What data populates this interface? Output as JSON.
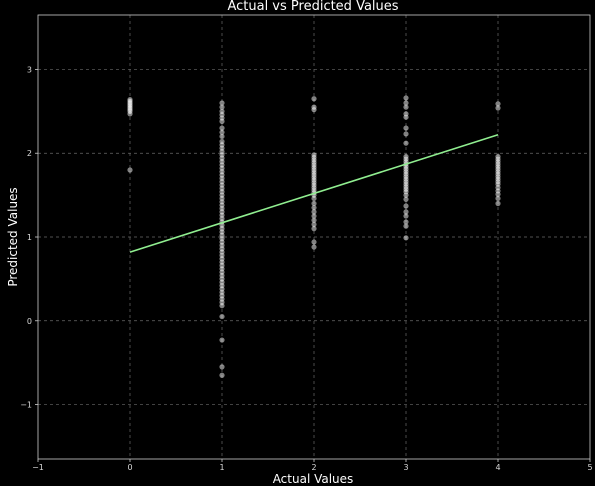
{
  "chart_data": {
    "type": "scatter",
    "title": "Actual vs Predicted Values",
    "xlabel": "Actual Values",
    "ylabel": "Predicted Values",
    "xlim": [
      -1,
      5
    ],
    "ylim": [
      -1.65,
      3.65
    ],
    "xticks": [
      -1,
      0,
      1,
      2,
      3,
      4,
      5
    ],
    "yticks": [
      -1,
      0,
      1,
      2,
      3
    ],
    "grid": true,
    "colors": {
      "background": "#000000",
      "points": "#ffffff",
      "fit_line": "#90ee90",
      "grid": "#6a6a6a",
      "frame": "#cfcfcf"
    },
    "series": [
      {
        "type": "scatter",
        "points": [
          [
            0,
            2.64
          ],
          [
            0,
            2.62
          ],
          [
            0,
            2.6
          ],
          [
            0,
            2.58
          ],
          [
            0,
            2.56
          ],
          [
            0,
            2.54
          ],
          [
            0,
            2.52
          ],
          [
            0,
            2.5
          ],
          [
            0,
            2.47
          ],
          [
            0,
            1.8
          ],
          [
            1,
            2.6
          ],
          [
            1,
            2.55
          ],
          [
            1,
            2.5
          ],
          [
            1,
            2.46
          ],
          [
            1,
            2.42
          ],
          [
            1,
            2.38
          ],
          [
            1,
            2.3
          ],
          [
            1,
            2.25
          ],
          [
            1,
            2.2
          ],
          [
            1,
            2.14
          ],
          [
            1,
            2.1
          ],
          [
            1,
            2.06
          ],
          [
            1,
            2.02
          ],
          [
            1,
            1.98
          ],
          [
            1,
            1.94
          ],
          [
            1,
            1.9
          ],
          [
            1,
            1.86
          ],
          [
            1,
            1.82
          ],
          [
            1,
            1.78
          ],
          [
            1,
            1.74
          ],
          [
            1,
            1.7
          ],
          [
            1,
            1.66
          ],
          [
            1,
            1.62
          ],
          [
            1,
            1.58
          ],
          [
            1,
            1.54
          ],
          [
            1,
            1.5
          ],
          [
            1,
            1.46
          ],
          [
            1,
            1.42
          ],
          [
            1,
            1.38
          ],
          [
            1,
            1.34
          ],
          [
            1,
            1.3
          ],
          [
            1,
            1.26
          ],
          [
            1,
            1.22
          ],
          [
            1,
            1.18
          ],
          [
            1,
            1.14
          ],
          [
            1,
            1.1
          ],
          [
            1,
            1.06
          ],
          [
            1,
            1.02
          ],
          [
            1,
            0.98
          ],
          [
            1,
            0.94
          ],
          [
            1,
            0.9
          ],
          [
            1,
            0.86
          ],
          [
            1,
            0.82
          ],
          [
            1,
            0.78
          ],
          [
            1,
            0.74
          ],
          [
            1,
            0.7
          ],
          [
            1,
            0.66
          ],
          [
            1,
            0.62
          ],
          [
            1,
            0.58
          ],
          [
            1,
            0.54
          ],
          [
            1,
            0.5
          ],
          [
            1,
            0.46
          ],
          [
            1,
            0.42
          ],
          [
            1,
            0.38
          ],
          [
            1,
            0.34
          ],
          [
            1,
            0.3
          ],
          [
            1,
            0.26
          ],
          [
            1,
            0.22
          ],
          [
            1,
            0.18
          ],
          [
            1,
            0.05
          ],
          [
            1,
            -0.23
          ],
          [
            1,
            -0.55
          ],
          [
            1,
            -0.65
          ],
          [
            2,
            2.65
          ],
          [
            2,
            2.55
          ],
          [
            2,
            2.52
          ],
          [
            2,
            1.98
          ],
          [
            2,
            1.95
          ],
          [
            2,
            1.92
          ],
          [
            2,
            1.89
          ],
          [
            2,
            1.86
          ],
          [
            2,
            1.83
          ],
          [
            2,
            1.8
          ],
          [
            2,
            1.77
          ],
          [
            2,
            1.74
          ],
          [
            2,
            1.71
          ],
          [
            2,
            1.68
          ],
          [
            2,
            1.65
          ],
          [
            2,
            1.62
          ],
          [
            2,
            1.59
          ],
          [
            2,
            1.56
          ],
          [
            2,
            1.53
          ],
          [
            2,
            1.5
          ],
          [
            2,
            1.46
          ],
          [
            2,
            1.4
          ],
          [
            2,
            1.35
          ],
          [
            2,
            1.3
          ],
          [
            2,
            1.25
          ],
          [
            2,
            1.2
          ],
          [
            2,
            1.15
          ],
          [
            2,
            1.1
          ],
          [
            2,
            0.94
          ],
          [
            2,
            0.88
          ],
          [
            3,
            2.66
          ],
          [
            3,
            2.6
          ],
          [
            3,
            2.55
          ],
          [
            3,
            2.47
          ],
          [
            3,
            2.43
          ],
          [
            3,
            2.3
          ],
          [
            3,
            2.23
          ],
          [
            3,
            2.12
          ],
          [
            3,
            1.96
          ],
          [
            3,
            1.93
          ],
          [
            3,
            1.9
          ],
          [
            3,
            1.87
          ],
          [
            3,
            1.84
          ],
          [
            3,
            1.81
          ],
          [
            3,
            1.78
          ],
          [
            3,
            1.75
          ],
          [
            3,
            1.72
          ],
          [
            3,
            1.69
          ],
          [
            3,
            1.66
          ],
          [
            3,
            1.63
          ],
          [
            3,
            1.6
          ],
          [
            3,
            1.57
          ],
          [
            3,
            1.54
          ],
          [
            3,
            1.5
          ],
          [
            3,
            1.45
          ],
          [
            3,
            1.37
          ],
          [
            3,
            1.3
          ],
          [
            3,
            1.25
          ],
          [
            3,
            1.18
          ],
          [
            3,
            1.13
          ],
          [
            3,
            0.99
          ],
          [
            4,
            2.59
          ],
          [
            4,
            2.54
          ],
          [
            4,
            1.96
          ],
          [
            4,
            1.93
          ],
          [
            4,
            1.9
          ],
          [
            4,
            1.87
          ],
          [
            4,
            1.84
          ],
          [
            4,
            1.81
          ],
          [
            4,
            1.78
          ],
          [
            4,
            1.75
          ],
          [
            4,
            1.72
          ],
          [
            4,
            1.69
          ],
          [
            4,
            1.66
          ],
          [
            4,
            1.63
          ],
          [
            4,
            1.59
          ],
          [
            4,
            1.55
          ],
          [
            4,
            1.51
          ],
          [
            4,
            1.46
          ],
          [
            4,
            1.4
          ]
        ]
      },
      {
        "type": "line",
        "x": [
          0,
          4
        ],
        "y": [
          0.82,
          2.22
        ]
      }
    ]
  }
}
